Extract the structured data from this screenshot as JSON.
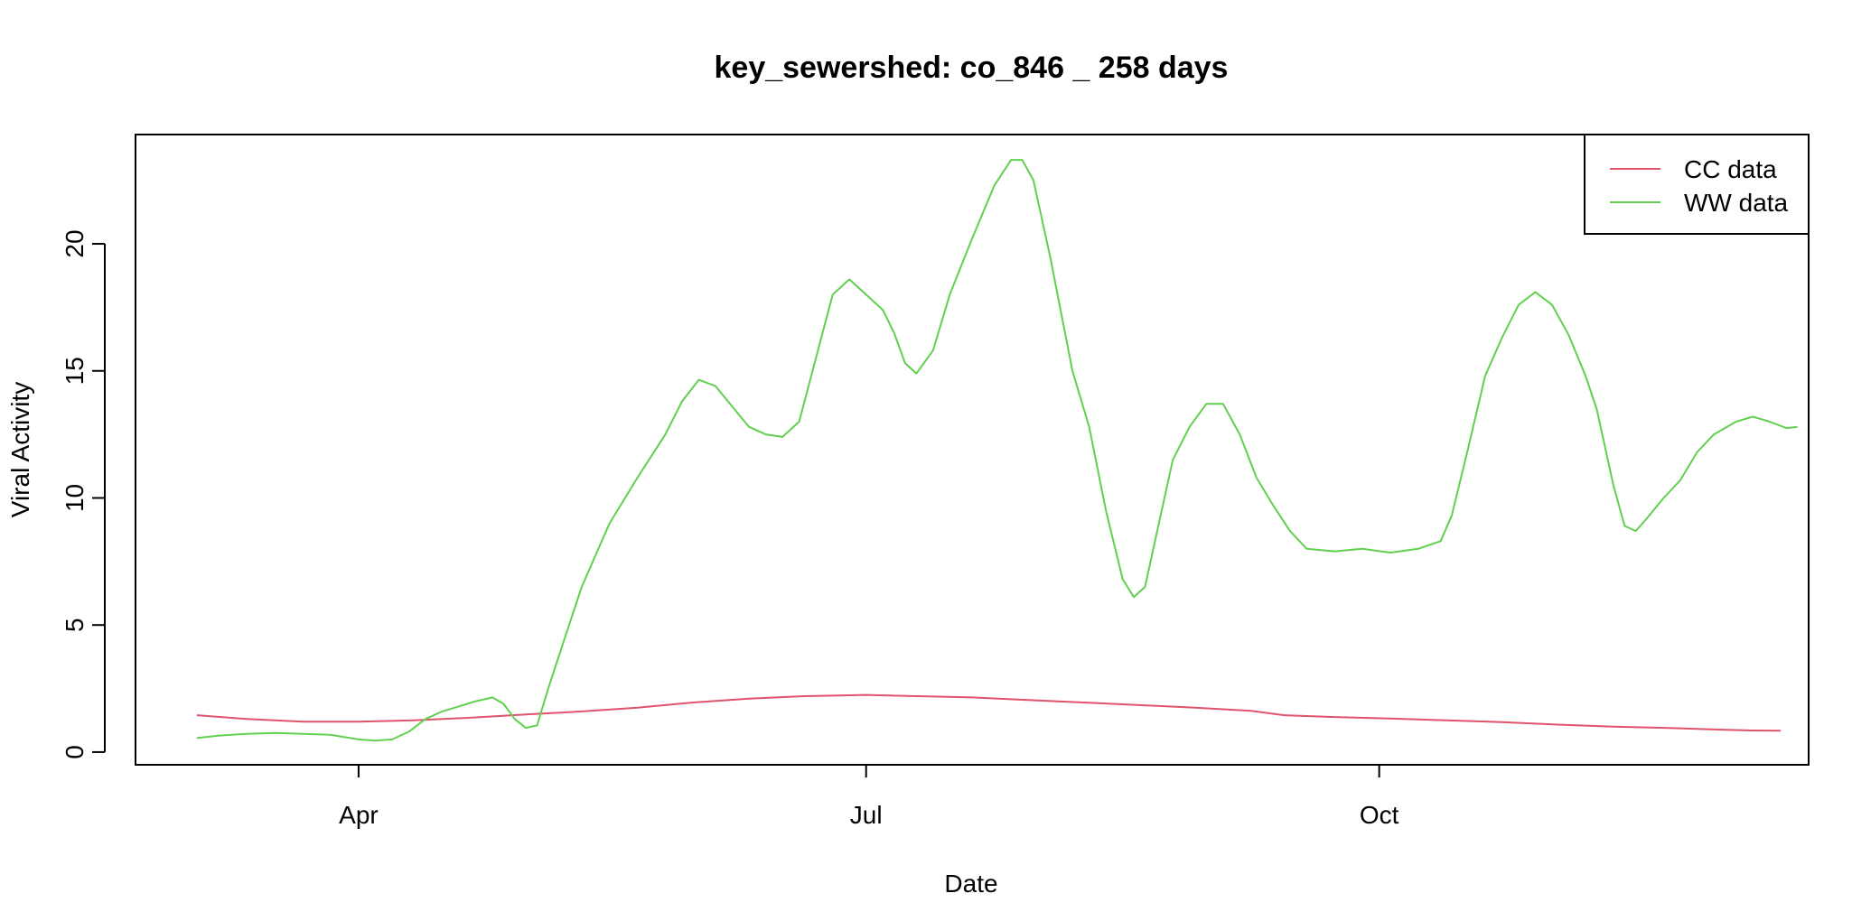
{
  "chart_data": {
    "type": "line",
    "title": "key_sewershed:  co_846 _ 258  days",
    "xlabel": "Date",
    "ylabel": "Viral Activity",
    "xlim_days": [
      -40,
      260
    ],
    "ylim": [
      -0.5,
      24.3
    ],
    "y_ticks": [
      0,
      5,
      10,
      15,
      20
    ],
    "x_ticks": [
      {
        "label": "Apr",
        "day": 0
      },
      {
        "label": "Jul",
        "day": 91
      },
      {
        "label": "Oct",
        "day": 183
      }
    ],
    "x_origin_note": "day 0 = Apr 1",
    "legend_position": "top-right",
    "series": [
      {
        "name": "CC data",
        "color": "#DF536B",
        "points": [
          [
            -29,
            1.45
          ],
          [
            -20,
            1.3
          ],
          [
            -10,
            1.2
          ],
          [
            0,
            1.2
          ],
          [
            10,
            1.25
          ],
          [
            20,
            1.35
          ],
          [
            30,
            1.48
          ],
          [
            40,
            1.6
          ],
          [
            50,
            1.75
          ],
          [
            60,
            1.95
          ],
          [
            70,
            2.1
          ],
          [
            80,
            2.2
          ],
          [
            91,
            2.25
          ],
          [
            100,
            2.2
          ],
          [
            110,
            2.15
          ],
          [
            120,
            2.05
          ],
          [
            130,
            1.95
          ],
          [
            140,
            1.85
          ],
          [
            150,
            1.75
          ],
          [
            160,
            1.62
          ],
          [
            166,
            1.45
          ],
          [
            175,
            1.38
          ],
          [
            185,
            1.32
          ],
          [
            195,
            1.25
          ],
          [
            205,
            1.18
          ],
          [
            215,
            1.08
          ],
          [
            225,
            1.0
          ],
          [
            235,
            0.95
          ],
          [
            245,
            0.88
          ],
          [
            250,
            0.85
          ],
          [
            255,
            0.84
          ]
        ]
      },
      {
        "name": "WW data",
        "color": "#61D04F",
        "points": [
          [
            -29,
            0.55
          ],
          [
            -25,
            0.65
          ],
          [
            -20,
            0.72
          ],
          [
            -15,
            0.75
          ],
          [
            -10,
            0.72
          ],
          [
            -5,
            0.68
          ],
          [
            0,
            0.5
          ],
          [
            3,
            0.45
          ],
          [
            6,
            0.5
          ],
          [
            9,
            0.8
          ],
          [
            12,
            1.3
          ],
          [
            15,
            1.6
          ],
          [
            18,
            1.8
          ],
          [
            21,
            2.0
          ],
          [
            24,
            2.15
          ],
          [
            26,
            1.9
          ],
          [
            28,
            1.3
          ],
          [
            30,
            0.95
          ],
          [
            32,
            1.05
          ],
          [
            34,
            2.5
          ],
          [
            37,
            4.5
          ],
          [
            40,
            6.5
          ],
          [
            45,
            9.0
          ],
          [
            50,
            10.8
          ],
          [
            55,
            12.5
          ],
          [
            58,
            13.8
          ],
          [
            61,
            14.65
          ],
          [
            64,
            14.4
          ],
          [
            67,
            13.6
          ],
          [
            70,
            12.8
          ],
          [
            73,
            12.5
          ],
          [
            76,
            12.4
          ],
          [
            79,
            13.0
          ],
          [
            82,
            15.5
          ],
          [
            85,
            18.0
          ],
          [
            88,
            18.6
          ],
          [
            91,
            18.0
          ],
          [
            94,
            17.4
          ],
          [
            96,
            16.5
          ],
          [
            98,
            15.3
          ],
          [
            100,
            14.9
          ],
          [
            103,
            15.8
          ],
          [
            106,
            18.0
          ],
          [
            110,
            20.2
          ],
          [
            114,
            22.3
          ],
          [
            117,
            23.3
          ],
          [
            119,
            23.3
          ],
          [
            121,
            22.5
          ],
          [
            124,
            19.5
          ],
          [
            128,
            15.0
          ],
          [
            131,
            12.8
          ],
          [
            134,
            9.5
          ],
          [
            137,
            6.8
          ],
          [
            139,
            6.1
          ],
          [
            141,
            6.5
          ],
          [
            143,
            8.5
          ],
          [
            146,
            11.5
          ],
          [
            149,
            12.8
          ],
          [
            152,
            13.7
          ],
          [
            155,
            13.7
          ],
          [
            158,
            12.5
          ],
          [
            161,
            10.8
          ],
          [
            164,
            9.7
          ],
          [
            167,
            8.7
          ],
          [
            170,
            8.0
          ],
          [
            175,
            7.9
          ],
          [
            180,
            8.0
          ],
          [
            185,
            7.85
          ],
          [
            190,
            8.0
          ],
          [
            194,
            8.3
          ],
          [
            196,
            9.3
          ],
          [
            199,
            12.0
          ],
          [
            202,
            14.8
          ],
          [
            205,
            16.3
          ],
          [
            208,
            17.6
          ],
          [
            211,
            18.1
          ],
          [
            214,
            17.6
          ],
          [
            217,
            16.4
          ],
          [
            220,
            14.8
          ],
          [
            222,
            13.5
          ],
          [
            225,
            10.5
          ],
          [
            227,
            8.9
          ],
          [
            229,
            8.7
          ],
          [
            231,
            9.2
          ],
          [
            234,
            10.0
          ],
          [
            237,
            10.7
          ],
          [
            240,
            11.8
          ],
          [
            243,
            12.5
          ],
          [
            247,
            13.0
          ],
          [
            250,
            13.2
          ],
          [
            253,
            13.0
          ],
          [
            256,
            12.75
          ],
          [
            258,
            12.8
          ]
        ]
      }
    ]
  }
}
